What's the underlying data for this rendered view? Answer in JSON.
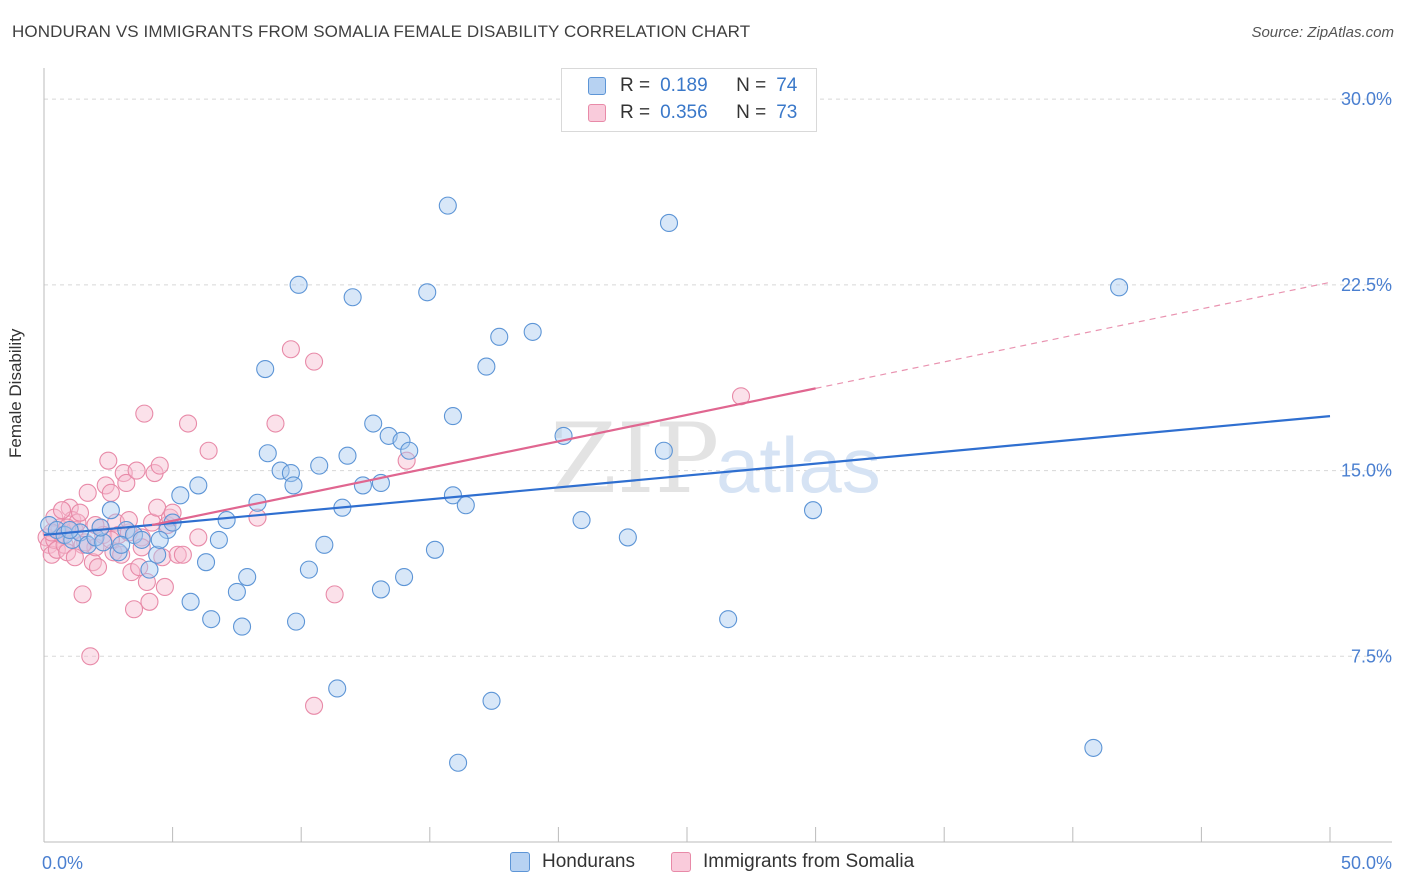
{
  "title": "HONDURAN VS IMMIGRANTS FROM SOMALIA FEMALE DISABILITY CORRELATION CHART",
  "source": "Source: ZipAtlas.com",
  "watermark": {
    "zip": "ZIP",
    "atlas": "atlas"
  },
  "legend": {
    "series1": {
      "r_label": "R =",
      "r_value": "0.189",
      "n_label": "N =",
      "n_value": "74"
    },
    "series2": {
      "r_label": "R =",
      "r_value": "0.356",
      "n_label": "N =",
      "n_value": "73"
    }
  },
  "bottom_legend": {
    "series1": "Hondurans",
    "series2": "Immigrants from Somalia"
  },
  "colors": {
    "blue_fill": "#a9c9ef",
    "blue_stroke": "#5d95d6",
    "blue_line": "#2f6fd0",
    "pink_fill": "#f6bdd0",
    "pink_stroke": "#e88aa8",
    "pink_line": "#e06690",
    "tick_label": "#4a7fd0",
    "grid": "#d8d8d8"
  },
  "chart_data": {
    "type": "scatter",
    "title": "HONDURAN VS IMMIGRANTS FROM SOMALIA FEMALE DISABILITY CORRELATION CHART",
    "xlabel": "",
    "ylabel": "Female Disability",
    "xlim": [
      0,
      50
    ],
    "ylim": [
      0,
      31.5
    ],
    "x_tick_labels": [
      "0.0%",
      "50.0%"
    ],
    "y_ticks": [
      7.5,
      15.0,
      22.5,
      30.0
    ],
    "y_tick_labels": [
      "7.5%",
      "15.0%",
      "22.5%",
      "30.0%"
    ],
    "series": [
      {
        "name": "Hondurans",
        "r": 0.189,
        "n": 74,
        "trend": {
          "x": [
            0,
            50
          ],
          "y": [
            12.4,
            17.2
          ],
          "dashed_from": null
        },
        "points": [
          [
            0.2,
            12.8
          ],
          [
            0.5,
            12.6
          ],
          [
            0.8,
            12.4
          ],
          [
            1.1,
            12.2
          ],
          [
            1.4,
            12.5
          ],
          [
            1.7,
            12.0
          ],
          [
            2.0,
            12.3
          ],
          [
            2.3,
            12.1
          ],
          [
            2.6,
            13.4
          ],
          [
            2.9,
            11.7
          ],
          [
            3.2,
            12.6
          ],
          [
            3.5,
            12.4
          ],
          [
            3.8,
            12.2
          ],
          [
            4.1,
            11.0
          ],
          [
            4.4,
            11.6
          ],
          [
            4.8,
            12.6
          ],
          [
            5.3,
            14.0
          ],
          [
            5.7,
            9.7
          ],
          [
            6.0,
            14.4
          ],
          [
            6.3,
            11.3
          ],
          [
            6.8,
            12.2
          ],
          [
            7.1,
            13.0
          ],
          [
            7.5,
            10.1
          ],
          [
            7.7,
            8.7
          ],
          [
            7.9,
            10.7
          ],
          [
            8.3,
            13.7
          ],
          [
            8.6,
            19.1
          ],
          [
            8.7,
            15.7
          ],
          [
            9.2,
            15.0
          ],
          [
            9.6,
            14.9
          ],
          [
            9.7,
            14.4
          ],
          [
            9.8,
            8.9
          ],
          [
            9.9,
            22.5
          ],
          [
            10.3,
            11.0
          ],
          [
            10.7,
            15.2
          ],
          [
            10.9,
            12.0
          ],
          [
            11.4,
            6.2
          ],
          [
            11.6,
            13.5
          ],
          [
            11.8,
            15.6
          ],
          [
            12.0,
            22.0
          ],
          [
            12.4,
            14.4
          ],
          [
            12.8,
            16.9
          ],
          [
            13.1,
            14.5
          ],
          [
            13.1,
            10.2
          ],
          [
            13.4,
            16.4
          ],
          [
            13.9,
            16.2
          ],
          [
            14.0,
            10.7
          ],
          [
            14.2,
            15.8
          ],
          [
            14.9,
            22.2
          ],
          [
            15.2,
            11.8
          ],
          [
            15.7,
            25.7
          ],
          [
            15.9,
            17.2
          ],
          [
            15.9,
            14.0
          ],
          [
            16.1,
            3.2
          ],
          [
            16.4,
            13.6
          ],
          [
            17.2,
            19.2
          ],
          [
            17.4,
            5.7
          ],
          [
            17.7,
            20.4
          ],
          [
            20.2,
            16.4
          ],
          [
            20.9,
            13.0
          ],
          [
            22.7,
            12.3
          ],
          [
            24.1,
            15.8
          ],
          [
            24.3,
            25.0
          ],
          [
            26.6,
            9.0
          ],
          [
            29.9,
            13.4
          ],
          [
            40.8,
            3.8
          ],
          [
            41.8,
            22.4
          ],
          [
            19.0,
            20.6
          ],
          [
            3.0,
            12.0
          ],
          [
            5.0,
            12.9
          ],
          [
            6.5,
            9.0
          ],
          [
            1.0,
            12.6
          ],
          [
            2.2,
            12.7
          ],
          [
            4.5,
            12.2
          ]
        ]
      },
      {
        "name": "Immigrants from Somalia",
        "r": 0.356,
        "n": 73,
        "trend": {
          "x": [
            0,
            50
          ],
          "y": [
            11.9,
            22.6
          ],
          "dashed_from": 30.0
        },
        "points": [
          [
            0.1,
            12.3
          ],
          [
            0.2,
            12.0
          ],
          [
            0.3,
            11.6
          ],
          [
            0.4,
            12.2
          ],
          [
            0.5,
            11.8
          ],
          [
            0.6,
            12.7
          ],
          [
            0.7,
            12.4
          ],
          [
            0.8,
            12.0
          ],
          [
            0.9,
            11.7
          ],
          [
            1.0,
            13.5
          ],
          [
            1.1,
            13.0
          ],
          [
            1.2,
            12.6
          ],
          [
            1.3,
            12.9
          ],
          [
            1.4,
            13.3
          ],
          [
            1.5,
            10.0
          ],
          [
            1.6,
            12.1
          ],
          [
            1.7,
            14.1
          ],
          [
            1.8,
            7.5
          ],
          [
            1.9,
            11.3
          ],
          [
            2.0,
            11.9
          ],
          [
            2.1,
            11.1
          ],
          [
            2.2,
            12.7
          ],
          [
            2.3,
            12.4
          ],
          [
            2.4,
            14.4
          ],
          [
            2.5,
            15.4
          ],
          [
            2.6,
            14.1
          ],
          [
            2.7,
            11.7
          ],
          [
            2.8,
            12.9
          ],
          [
            2.9,
            12.4
          ],
          [
            3.0,
            11.6
          ],
          [
            3.1,
            14.9
          ],
          [
            3.2,
            14.5
          ],
          [
            3.3,
            12.5
          ],
          [
            3.4,
            10.9
          ],
          [
            3.5,
            9.4
          ],
          [
            3.6,
            15.0
          ],
          [
            3.7,
            11.1
          ],
          [
            3.8,
            12.3
          ],
          [
            3.9,
            17.3
          ],
          [
            4.0,
            10.5
          ],
          [
            4.1,
            9.7
          ],
          [
            4.2,
            12.9
          ],
          [
            4.3,
            14.9
          ],
          [
            4.4,
            13.5
          ],
          [
            4.5,
            15.2
          ],
          [
            4.6,
            11.5
          ],
          [
            4.7,
            10.3
          ],
          [
            4.8,
            12.8
          ],
          [
            4.9,
            13.1
          ],
          [
            5.0,
            13.3
          ],
          [
            5.2,
            11.6
          ],
          [
            5.4,
            11.6
          ],
          [
            5.6,
            16.9
          ],
          [
            6.0,
            12.3
          ],
          [
            6.4,
            15.8
          ],
          [
            8.3,
            13.1
          ],
          [
            9.0,
            16.9
          ],
          [
            9.6,
            19.9
          ],
          [
            10.5,
            19.4
          ],
          [
            10.5,
            5.5
          ],
          [
            11.3,
            10.0
          ],
          [
            14.1,
            15.4
          ],
          [
            27.1,
            18.0
          ],
          [
            0.4,
            13.1
          ],
          [
            0.9,
            12.7
          ],
          [
            1.5,
            12.0
          ],
          [
            2.0,
            12.8
          ],
          [
            2.6,
            12.2
          ],
          [
            3.3,
            13.0
          ],
          [
            0.3,
            12.5
          ],
          [
            1.2,
            11.5
          ],
          [
            0.7,
            13.4
          ],
          [
            3.8,
            11.9
          ]
        ]
      }
    ]
  }
}
